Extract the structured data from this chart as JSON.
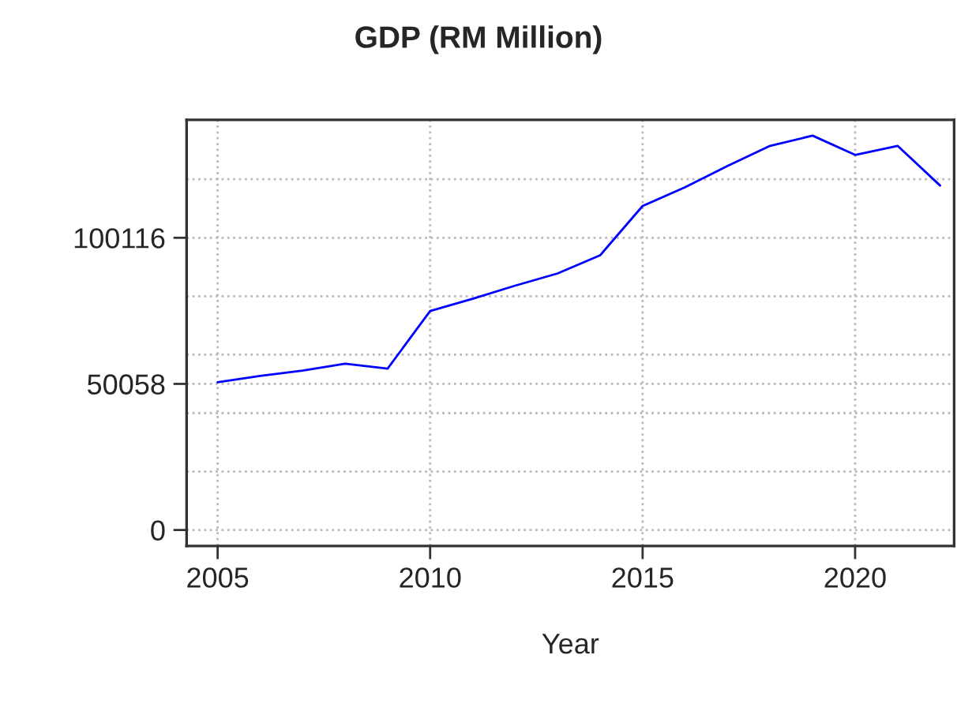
{
  "chart_data": {
    "type": "line",
    "title": "GDP (RM Million)",
    "xlabel": "Year",
    "x": [
      2005,
      2006,
      2007,
      2008,
      2009,
      2010,
      2011,
      2012,
      2013,
      2014,
      2015,
      2016,
      2017,
      2018,
      2019,
      2020,
      2021,
      2022
    ],
    "series": [
      {
        "color": "#0000ff",
        "values": [
          50600,
          52800,
          54600,
          57000,
          55300,
          75000,
          79200,
          83700,
          87900,
          94100,
          111000,
          117400,
          124700,
          131600,
          135100,
          128500,
          131600,
          118000
        ]
      }
    ],
    "xlim": [
      2004.27,
      2022.33
    ],
    "xticks": [
      2005,
      2010,
      2015,
      2020
    ],
    "ylim": [
      -5461,
      140527
    ],
    "yticks": [
      0,
      {
        "value": 20023.2,
        "label": null
      },
      {
        "value": 40046.4,
        "label": null
      },
      50058,
      {
        "value": 60069.6,
        "label": null
      },
      {
        "value": 80092.8,
        "label": null
      },
      100116,
      {
        "value": 120139.2,
        "label": null
      }
    ],
    "grid": true
  }
}
